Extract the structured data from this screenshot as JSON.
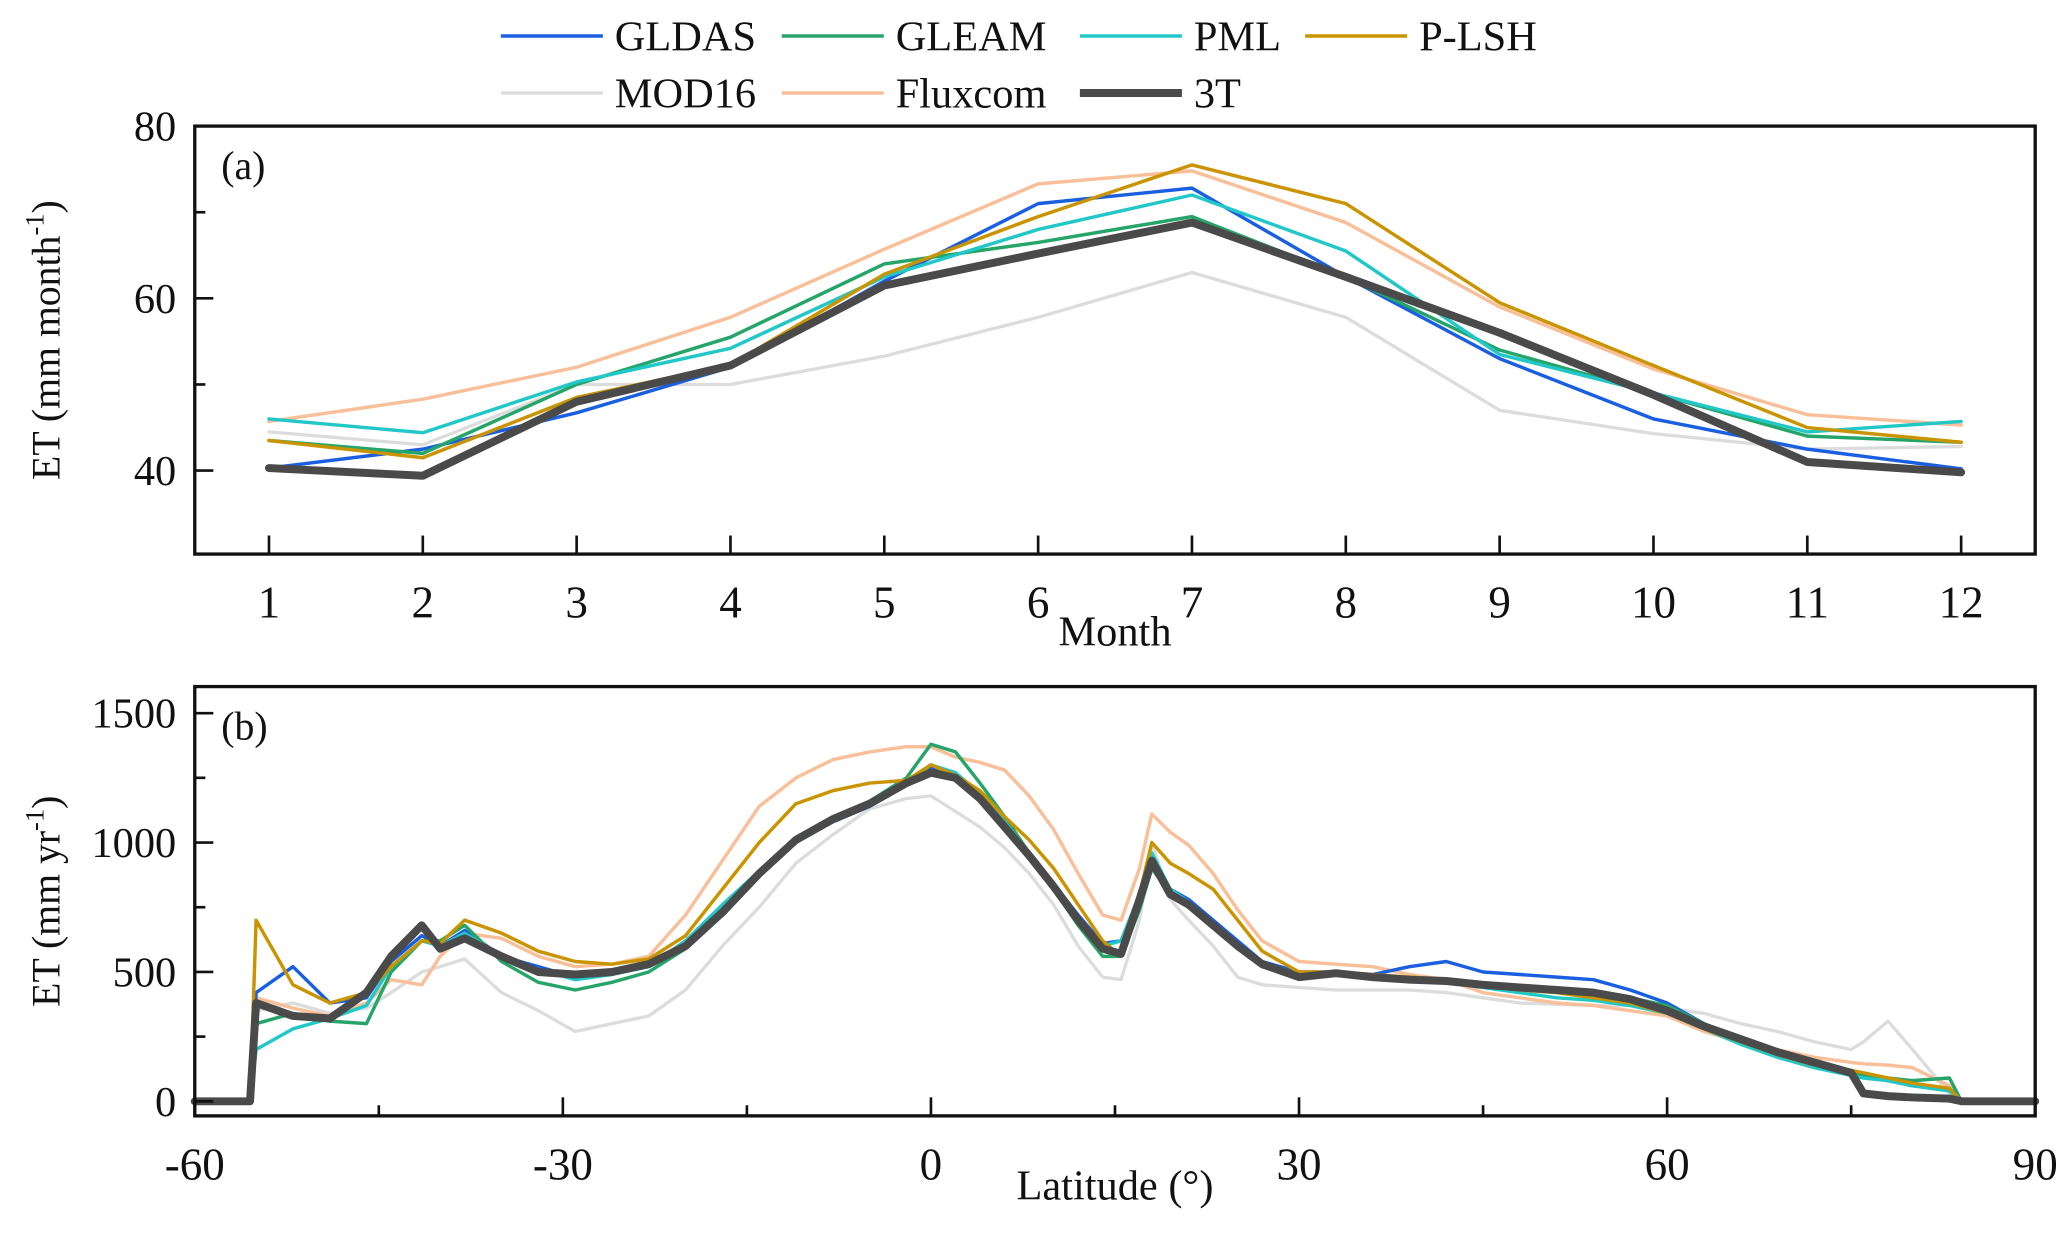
{
  "legend": [
    "GLDAS",
    "GLEAM",
    "PML",
    "P-LSH",
    "MOD16",
    "Fluxcom",
    "3T"
  ],
  "colors": {
    "GLDAS": "#1a5fe0",
    "GLEAM": "#26a56a",
    "PML": "#22c7c7",
    "P-LSH": "#c99400",
    "MOD16": "#dcdcdc",
    "Fluxcom": "#f8bf98",
    "3T": "#4a4a4a"
  },
  "chart_data": [
    {
      "type": "line",
      "panel_label": "(a)",
      "xlabel": "Month",
      "ylabel": {
        "main": "ET (mm month",
        "sup": "-1",
        "end": ")"
      },
      "xlim": [
        0.5,
        12.5
      ],
      "ylim": [
        30,
        80
      ],
      "x": [
        1,
        2,
        3,
        4,
        5,
        6,
        7,
        8,
        9,
        10,
        11,
        12
      ],
      "xticks": [
        "1",
        "2",
        "3",
        "4",
        "5",
        "6",
        "7",
        "8",
        "9",
        "10",
        "11",
        "12"
      ],
      "yticks": [
        "40",
        "60",
        "80"
      ],
      "series": [
        {
          "name": "MOD16",
          "values": [
            44.5,
            43,
            50,
            50,
            53.3,
            57.8,
            63,
            57.8,
            47,
            44.3,
            42.5,
            42.8
          ]
        },
        {
          "name": "Fluxcom",
          "values": [
            45.7,
            48.3,
            52,
            57.8,
            65.7,
            73.3,
            74.8,
            68.8,
            59,
            51.8,
            46.5,
            45.3
          ]
        },
        {
          "name": "GLDAS",
          "values": [
            40.3,
            42.5,
            46.7,
            52,
            62,
            71,
            72.8,
            62.5,
            53,
            46,
            42.5,
            40.2
          ]
        },
        {
          "name": "GLEAM",
          "values": [
            43.5,
            42,
            50,
            55.5,
            64,
            66.5,
            69.5,
            62.5,
            54,
            49,
            44,
            43.3
          ]
        },
        {
          "name": "PML",
          "values": [
            46,
            44.4,
            50.3,
            54.2,
            62.5,
            68,
            72,
            65.5,
            53.5,
            49,
            44.5,
            45.7
          ]
        },
        {
          "name": "P-LSH",
          "values": [
            43.5,
            41.5,
            48.5,
            52.3,
            62.8,
            69.5,
            75.5,
            71,
            59.5,
            52.2,
            45,
            43.3
          ]
        },
        {
          "name": "3T",
          "values": [
            40.3,
            39.4,
            48,
            52.2,
            61.5,
            65.2,
            68.8,
            62.5,
            56,
            48.8,
            41,
            39.8
          ]
        }
      ]
    },
    {
      "type": "line",
      "panel_label": "(b)",
      "xlabel": "Latitude (°)",
      "ylabel": {
        "main": "ET (mm yr",
        "sup": "-1",
        "end": ")"
      },
      "xlim": [
        -60,
        90
      ],
      "ylim": [
        -60,
        1650
      ],
      "xticks": [
        "-60",
        "-30",
        "0",
        "30",
        "60",
        "90"
      ],
      "yticks": [
        "0",
        "500",
        "1000",
        "1500"
      ],
      "x": [
        -60,
        -55.5,
        -55,
        -52,
        -49,
        -46,
        -44,
        -41.5,
        -40,
        -38,
        -35,
        -32,
        -29,
        -26,
        -23,
        -20,
        -17,
        -14,
        -11,
        -8,
        -5,
        -2,
        0,
        2,
        4,
        6,
        8,
        10,
        12,
        14,
        15.5,
        17,
        18,
        19.5,
        21,
        23,
        25,
        27,
        30,
        33,
        36,
        39,
        42,
        45,
        48,
        51,
        54,
        57,
        60,
        63,
        66,
        69,
        72,
        75,
        76,
        78,
        80,
        83,
        84,
        90
      ],
      "series": [
        {
          "name": "MOD16",
          "values": [
            0,
            0,
            350,
            380,
            340,
            360,
            420,
            500,
            520,
            550,
            420,
            350,
            270,
            300,
            330,
            430,
            600,
            750,
            920,
            1030,
            1130,
            1170,
            1180,
            1120,
            1060,
            980,
            880,
            760,
            600,
            480,
            470,
            700,
            1000,
            780,
            700,
            600,
            480,
            450,
            440,
            430,
            430,
            430,
            420,
            400,
            380,
            375,
            370,
            370,
            360,
            340,
            300,
            270,
            230,
            200,
            230,
            310,
            200,
            30,
            0,
            0
          ]
        },
        {
          "name": "Fluxcom",
          "values": [
            0,
            0,
            400,
            360,
            330,
            380,
            470,
            450,
            560,
            650,
            630,
            560,
            520,
            530,
            560,
            720,
            930,
            1140,
            1250,
            1320,
            1350,
            1370,
            1370,
            1330,
            1310,
            1280,
            1180,
            1050,
            880,
            720,
            700,
            900,
            1110,
            1040,
            990,
            880,
            740,
            620,
            540,
            530,
            520,
            490,
            470,
            420,
            400,
            380,
            370,
            350,
            330,
            270,
            230,
            200,
            170,
            150,
            145,
            140,
            130,
            60,
            0,
            0
          ]
        },
        {
          "name": "GLDAS",
          "values": [
            0,
            0,
            420,
            520,
            380,
            400,
            540,
            640,
            600,
            660,
            560,
            520,
            480,
            500,
            530,
            600,
            740,
            870,
            1000,
            1080,
            1140,
            1220,
            1290,
            1260,
            1190,
            1080,
            960,
            840,
            720,
            610,
            620,
            790,
            910,
            820,
            780,
            700,
            620,
            540,
            500,
            500,
            490,
            520,
            540,
            500,
            490,
            480,
            470,
            430,
            380,
            300,
            240,
            190,
            150,
            110,
            100,
            80,
            60,
            50,
            0,
            0
          ]
        },
        {
          "name": "GLEAM",
          "values": [
            0,
            0,
            300,
            340,
            310,
            300,
            500,
            620,
            620,
            680,
            540,
            460,
            430,
            460,
            500,
            590,
            720,
            870,
            1000,
            1090,
            1160,
            1250,
            1380,
            1350,
            1230,
            1100,
            960,
            820,
            680,
            560,
            560,
            740,
            900,
            800,
            760,
            680,
            600,
            520,
            480,
            490,
            480,
            480,
            470,
            450,
            440,
            430,
            420,
            400,
            370,
            300,
            240,
            190,
            150,
            110,
            100,
            90,
            80,
            90,
            0,
            0
          ]
        },
        {
          "name": "PML",
          "values": [
            0,
            0,
            200,
            280,
            320,
            370,
            520,
            620,
            600,
            650,
            560,
            510,
            470,
            490,
            520,
            620,
            760,
            890,
            1010,
            1090,
            1150,
            1230,
            1300,
            1270,
            1190,
            1080,
            960,
            840,
            710,
            600,
            620,
            800,
            960,
            820,
            770,
            690,
            610,
            530,
            490,
            490,
            480,
            470,
            460,
            440,
            420,
            400,
            390,
            370,
            340,
            280,
            220,
            170,
            130,
            100,
            90,
            80,
            60,
            40,
            0,
            0
          ]
        },
        {
          "name": "P-LSH",
          "values": [
            0,
            0,
            700,
            450,
            380,
            420,
            520,
            620,
            610,
            700,
            650,
            580,
            540,
            530,
            550,
            640,
            820,
            1000,
            1150,
            1200,
            1230,
            1240,
            1300,
            1260,
            1200,
            1100,
            1010,
            900,
            760,
            620,
            560,
            800,
            1000,
            920,
            880,
            820,
            700,
            580,
            500,
            500,
            490,
            480,
            470,
            450,
            430,
            420,
            400,
            380,
            340,
            280,
            230,
            180,
            140,
            120,
            110,
            90,
            70,
            50,
            0,
            0
          ]
        },
        {
          "name": "3T",
          "values": [
            0,
            0,
            380,
            330,
            320,
            420,
            560,
            680,
            590,
            630,
            560,
            500,
            490,
            500,
            530,
            600,
            730,
            880,
            1010,
            1090,
            1150,
            1230,
            1270,
            1250,
            1170,
            1060,
            950,
            830,
            700,
            590,
            570,
            780,
            930,
            800,
            760,
            680,
            600,
            530,
            480,
            495,
            480,
            470,
            465,
            450,
            440,
            430,
            420,
            395,
            350,
            290,
            240,
            190,
            150,
            110,
            30,
            20,
            15,
            10,
            0,
            0
          ]
        }
      ]
    }
  ]
}
